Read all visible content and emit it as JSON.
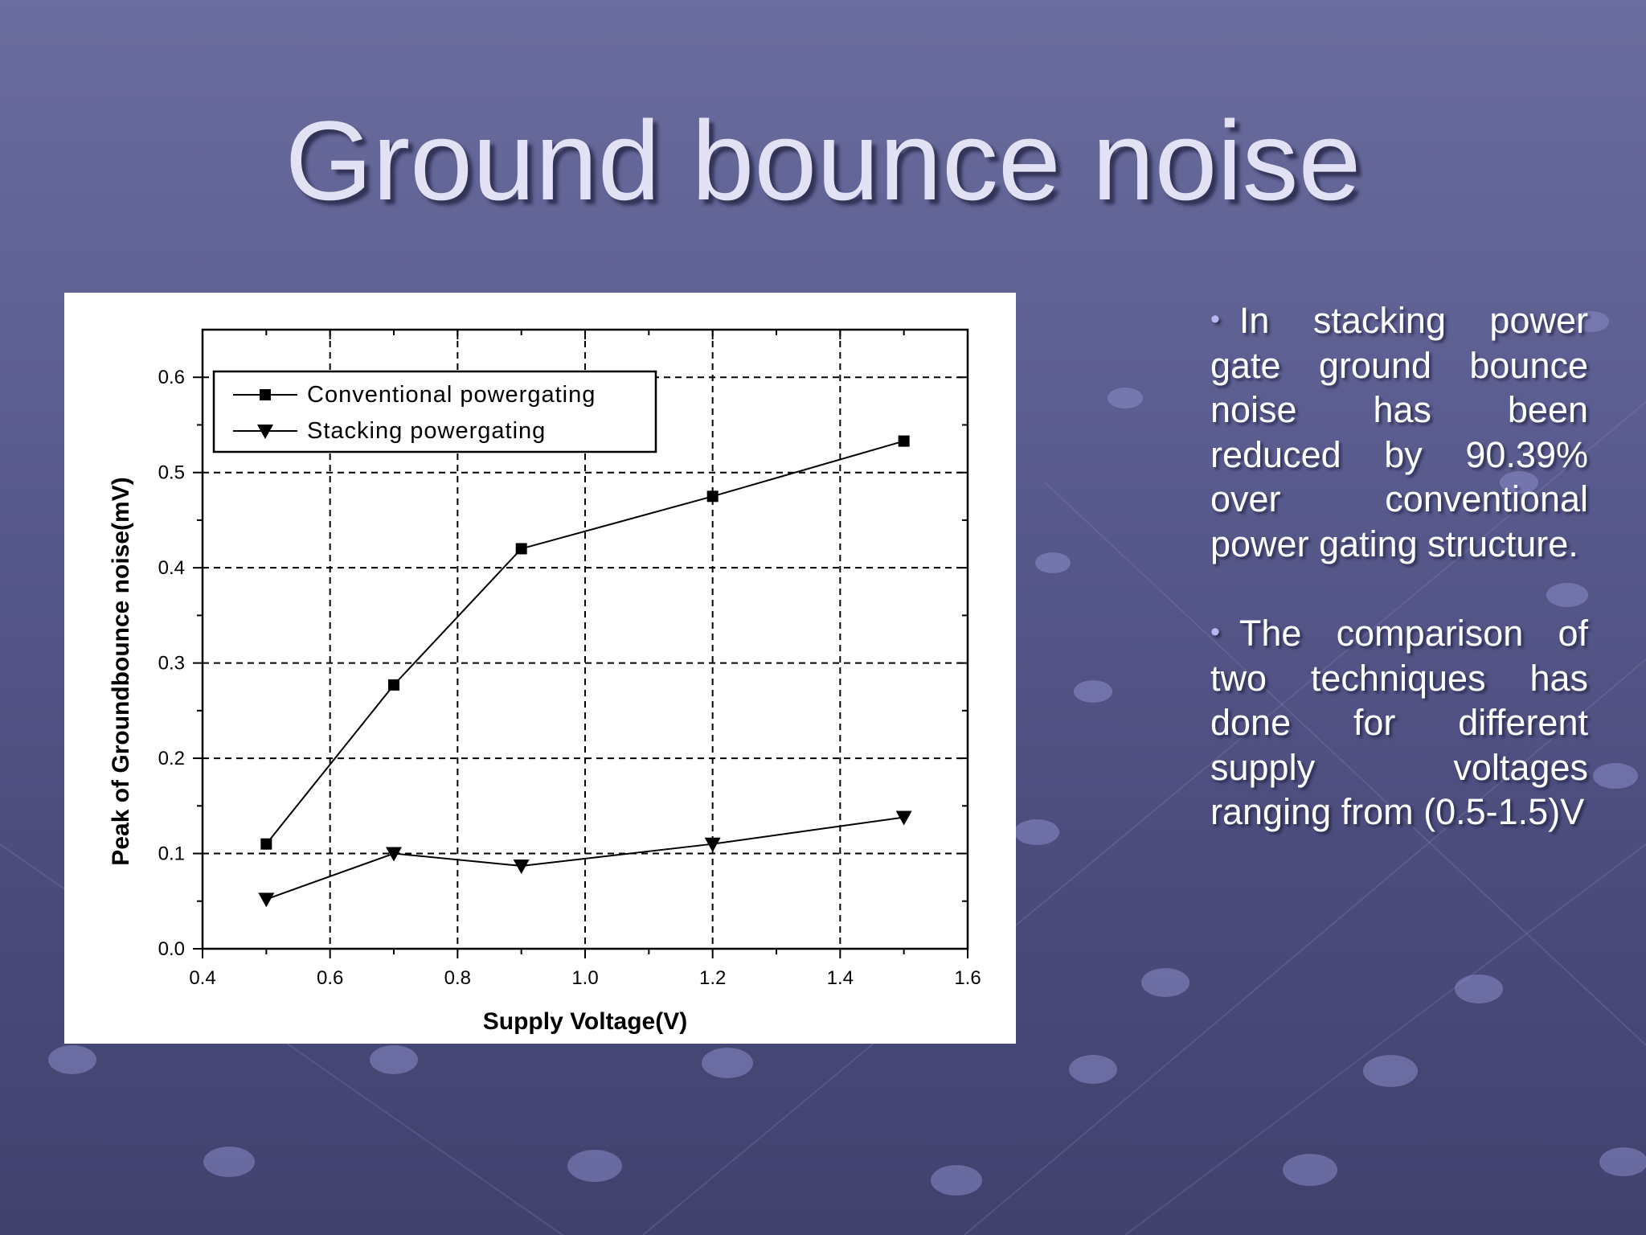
{
  "slide": {
    "title": "Ground bounce noise",
    "bullets": [
      "In stacking power gate ground bounce noise has been reduced by 90.39% over conventional power gating structure.",
      "The comparison of two techniques has done for different supply voltages ranging from (0.5-1.5)V"
    ]
  },
  "colors": {
    "title_text": "#e2e2f4",
    "bullet_marker": "#b8b6f0",
    "chart_background": "#ffffff",
    "series_color": "#000000"
  },
  "chart_data": {
    "type": "line",
    "title": "",
    "xlabel": "Supply Voltage(V)",
    "ylabel": "Peak of Groundbounce noise(mV)",
    "xlim": [
      0.4,
      1.6
    ],
    "ylim": [
      0.0,
      0.65
    ],
    "xticks": [
      "0.4",
      "0.6",
      "0.8",
      "1.0",
      "1.2",
      "1.4",
      "1.6"
    ],
    "yticks": [
      "0.0",
      "0.1",
      "0.2",
      "0.3",
      "0.4",
      "0.5",
      "0.6"
    ],
    "grid": true,
    "legend_position": "top-left",
    "series": [
      {
        "name": "Conventional powergating",
        "marker": "square",
        "x": [
          0.5,
          0.7,
          0.9,
          1.2,
          1.5
        ],
        "y": [
          0.11,
          0.277,
          0.42,
          0.475,
          0.533
        ]
      },
      {
        "name": "Stacking powergating",
        "marker": "triangle-down",
        "x": [
          0.5,
          0.7,
          0.9,
          1.2,
          1.5
        ],
        "y": [
          0.052,
          0.1,
          0.087,
          0.11,
          0.138
        ]
      }
    ]
  }
}
